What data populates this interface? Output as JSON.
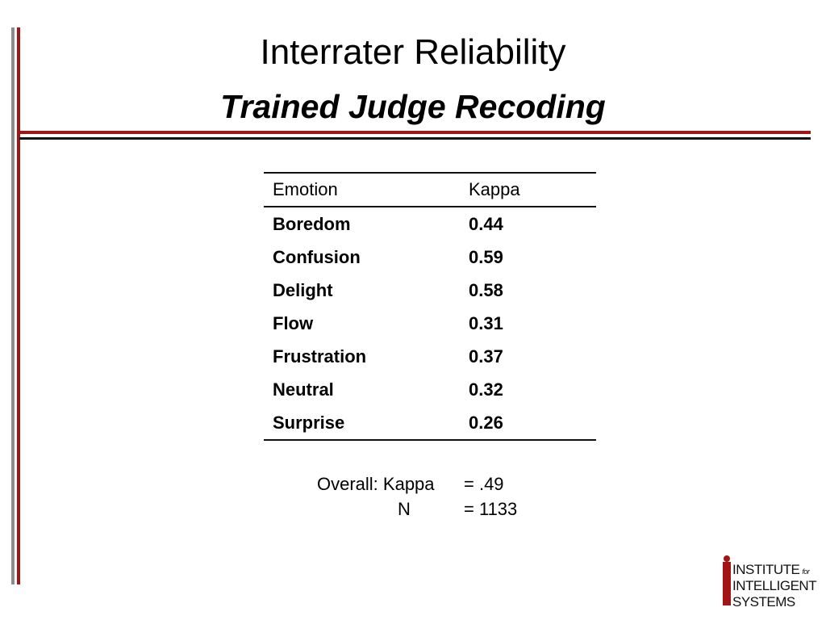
{
  "slide": {
    "title": "Interrater Reliability",
    "subtitle": "Trained Judge Recoding",
    "accent_color": "#a31515"
  },
  "table": {
    "headers": [
      "Emotion",
      "Kappa"
    ],
    "rows": [
      {
        "emotion": "Boredom",
        "kappa": "0.44"
      },
      {
        "emotion": "Confusion",
        "kappa": "0.59"
      },
      {
        "emotion": "Delight",
        "kappa": "0.58"
      },
      {
        "emotion": "Flow",
        "kappa": "0.31"
      },
      {
        "emotion": "Frustration",
        "kappa": "0.37"
      },
      {
        "emotion": "Neutral",
        "kappa": "0.32"
      },
      {
        "emotion": "Surprise",
        "kappa": "0.26"
      }
    ]
  },
  "overall": {
    "label": "Overall: Kappa",
    "kappa_value": "= .49",
    "n_label": "N",
    "n_value": "= 1133"
  },
  "logo": {
    "line1": "INSTITUTE",
    "for": "for",
    "line2": "INTELLIGENT",
    "line3": "SYSTEMS"
  }
}
